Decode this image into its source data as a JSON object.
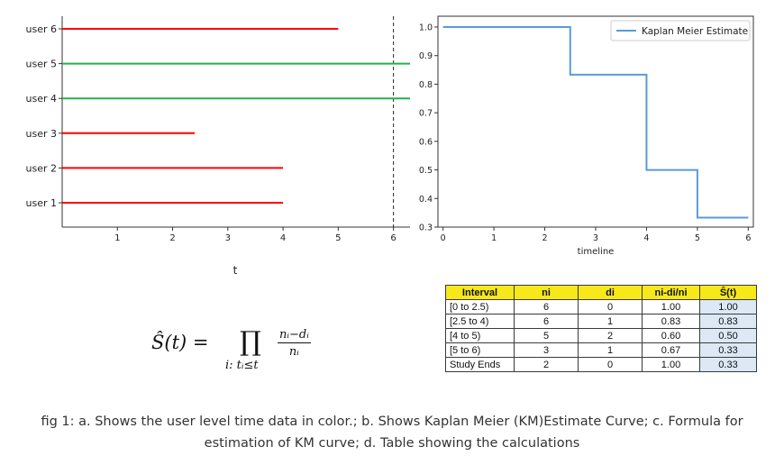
{
  "chart_data": [
    {
      "type": "timeline",
      "xlabel": "t",
      "x_ticks": [
        1,
        2,
        3,
        4,
        5,
        6
      ],
      "xlim": [
        0,
        6.3
      ],
      "study_end": 6,
      "users": [
        {
          "label": "user 6",
          "end": 5,
          "color": "#ff0000"
        },
        {
          "label": "user 5",
          "end": 6.3,
          "color": "#22b14c"
        },
        {
          "label": "user 4",
          "end": 6.3,
          "color": "#22b14c"
        },
        {
          "label": "user 3",
          "end": 2.4,
          "color": "#ff0000"
        },
        {
          "label": "user 2",
          "end": 4,
          "color": "#ff0000"
        },
        {
          "label": "user 1",
          "end": 4,
          "color": "#ff0000"
        }
      ]
    },
    {
      "type": "step",
      "xlabel": "timeline",
      "x_ticks": [
        0,
        1,
        2,
        3,
        4,
        5,
        6
      ],
      "y_ticks": [
        0.3,
        0.4,
        0.5,
        0.6,
        0.7,
        0.8,
        0.9,
        1.0
      ],
      "y_tick_labels": [
        "0.3",
        "0.4",
        "0.5",
        "0.6",
        "0.7",
        "0.8",
        "0.9",
        "1.0"
      ],
      "xlim": [
        -0.1,
        6.1
      ],
      "ylim": [
        0.3,
        1.0
      ],
      "legend_position": "top-right",
      "series": [
        {
          "name": "Kaplan Meier Estimate",
          "color": "#5a9bd5",
          "x": [
            0,
            2.5,
            4,
            5,
            6
          ],
          "y": [
            1.0,
            0.8333,
            0.5,
            0.3333,
            0.3333
          ]
        }
      ]
    },
    {
      "type": "table",
      "headers": [
        "Interval",
        "ni",
        "di",
        "ni-di/ni",
        "Ŝ(t)"
      ],
      "rows": [
        [
          "[0 to 2.5)",
          "6",
          "0",
          "1.00",
          "1.00"
        ],
        [
          "[2.5 to 4)",
          "6",
          "1",
          "0.83",
          "0.83"
        ],
        [
          "[4 to 5)",
          "5",
          "2",
          "0.60",
          "0.50"
        ],
        [
          "[5 to 6)",
          "3",
          "1",
          "0.67",
          "0.33"
        ],
        [
          "Study Ends",
          "2",
          "0",
          "1.00",
          "0.33"
        ]
      ]
    }
  ],
  "formula": {
    "lhs": "Ŝ(t) =",
    "product": "∏",
    "subscript": "i: tᵢ≤t",
    "numerator": "nᵢ−dᵢ",
    "denominator": "nᵢ"
  },
  "caption": {
    "line1": "fig 1: a. Shows the user level time data in color.; b. Shows Kaplan Meier (KM)Estimate Curve; c. Formula for",
    "line2": "estimation of KM curve; d. Table showing the calculations"
  }
}
